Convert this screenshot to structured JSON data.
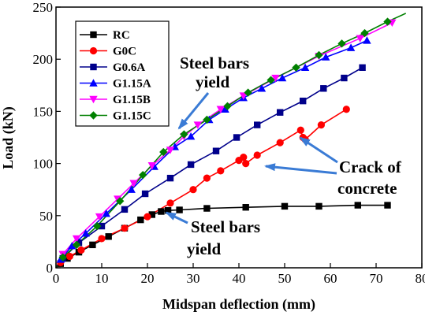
{
  "chart_data": {
    "type": "line",
    "xlabel": "Midspan deflection (mm)",
    "ylabel": "Load (kN)",
    "xlim": [
      0,
      80
    ],
    "ylim": [
      0,
      250
    ],
    "xticks": [
      0,
      10,
      20,
      30,
      40,
      50,
      60,
      70,
      80
    ],
    "yticks": [
      0,
      50,
      100,
      150,
      200,
      250
    ],
    "grid": false,
    "legend_position": "top-left",
    "series": [
      {
        "name": "RC",
        "color": "#000000",
        "marker": "square",
        "x": [
          0,
          1,
          2.5,
          5,
          8,
          11.5,
          15,
          18.5,
          21,
          23,
          24.5,
          27,
          33,
          41.5,
          50,
          57.5,
          66,
          72.5
        ],
        "y": [
          0,
          4,
          9,
          15,
          22,
          30,
          38,
          46,
          51,
          54,
          55,
          55.5,
          57,
          58,
          59,
          59,
          60,
          60
        ]
      },
      {
        "name": "G0C",
        "color": "#ff0000",
        "marker": "circle",
        "x": [
          0,
          1,
          3,
          5.5,
          10,
          15,
          20,
          25,
          30,
          33,
          36,
          40,
          41,
          41.5,
          44,
          49,
          53.5,
          54,
          54.5,
          58,
          63.5
        ],
        "y": [
          0,
          5,
          11,
          17,
          28,
          38,
          49,
          62,
          75,
          86,
          93,
          103,
          106,
          100,
          108,
          120,
          132,
          125,
          123,
          137,
          152
        ]
      },
      {
        "name": "G0.6A",
        "color": "#00008b",
        "marker": "square",
        "x": [
          0,
          1.5,
          5,
          10,
          15,
          19.5,
          25,
          29.5,
          35,
          39.5,
          44,
          49,
          54,
          58.5,
          63,
          67
        ],
        "y": [
          0,
          9,
          24,
          40,
          56,
          71,
          86,
          99,
          112,
          125,
          137,
          149,
          160,
          172,
          182,
          192
        ]
      },
      {
        "name": "G1.15A",
        "color": "#0000ff",
        "marker": "triangle",
        "x": [
          0,
          1,
          3.5,
          6.5,
          11,
          16.5,
          21.5,
          26,
          29.5,
          33.5,
          37,
          41,
          45,
          49.5,
          54.5,
          59,
          64.5,
          68
        ],
        "y": [
          0,
          8,
          21,
          33,
          52,
          75,
          97,
          116,
          126,
          142,
          152,
          163,
          172,
          182,
          192,
          202,
          211,
          218
        ]
      },
      {
        "name": "G1.15B",
        "color": "#ff00ff",
        "marker": "triangle-down",
        "x": [
          0,
          1.5,
          4.5,
          9.5,
          13.5,
          17,
          21,
          25,
          28,
          31,
          36,
          41,
          48,
          57.5,
          66.5,
          73.5
        ],
        "y": [
          0,
          13,
          28,
          49,
          66,
          81,
          98,
          113,
          126,
          137,
          152,
          165,
          182,
          203,
          220,
          235
        ]
      },
      {
        "name": "G1.15C",
        "color": "#008000",
        "marker": "diamond",
        "x": [
          0,
          1.5,
          4.5,
          9,
          14,
          19,
          23.5,
          28,
          33,
          37.5,
          42,
          47,
          52.5,
          57.5,
          62.5,
          67.5,
          72.5,
          76.5
        ],
        "y": [
          0,
          10,
          22,
          40,
          64,
          89,
          111,
          128,
          142,
          155,
          168,
          180,
          192,
          204,
          215,
          225,
          236,
          244
        ]
      }
    ],
    "annotations": [
      {
        "lines": [
          "Steel bars",
          "yield"
        ]
      },
      {
        "lines": [
          "Crack of",
          "concrete"
        ]
      },
      {
        "lines": [
          "Steel bars",
          "yield"
        ]
      }
    ]
  }
}
